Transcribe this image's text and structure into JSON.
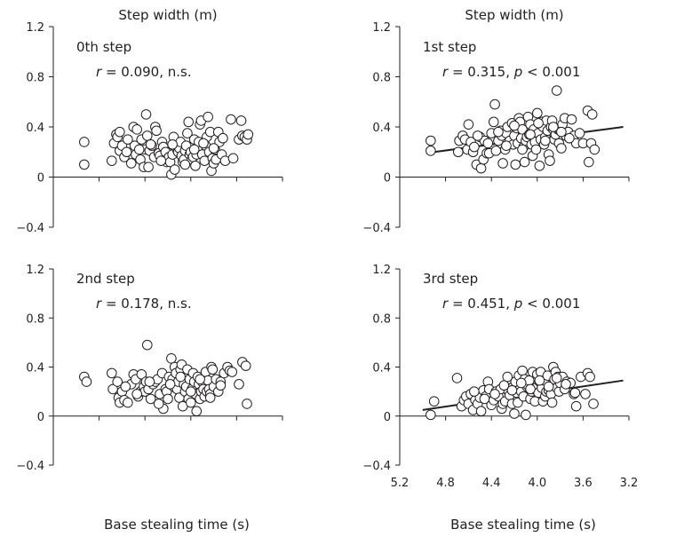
{
  "colors": {
    "ink": "#231f20",
    "point_fill": "#ffffff",
    "background": "#ffffff"
  },
  "chart_data": [
    {
      "type": "scatter",
      "panel": "0th step",
      "title": "Step width (m)",
      "xlabel": "",
      "ylabel": "",
      "stat_r": "0.090",
      "stat_sig": "n.s.",
      "xlim": [
        5.2,
        3.2
      ],
      "ylim": [
        -0.4,
        1.2
      ],
      "x_ticks": [],
      "y_ticks": [
        "1.2",
        "0.8",
        "0.4",
        "0",
        "-0.4"
      ],
      "x": [
        4.93,
        4.93,
        4.69,
        4.67,
        4.65,
        4.64,
        4.62,
        4.6,
        4.58,
        4.56,
        4.52,
        4.5,
        4.49,
        4.48,
        4.47,
        4.44,
        4.43,
        4.41,
        4.4,
        4.39,
        4.38,
        4.37,
        4.36,
        4.34,
        4.32,
        4.31,
        4.3,
        4.28,
        4.27,
        4.25,
        4.24,
        4.22,
        4.21,
        4.2,
        4.19,
        4.18,
        4.17,
        4.16,
        4.15,
        4.14,
        4.13,
        4.12,
        4.11,
        4.1,
        4.09,
        4.08,
        4.07,
        4.06,
        4.05,
        4.04,
        4.03,
        4.02,
        4.01,
        4.0,
        3.99,
        3.98,
        3.97,
        3.96,
        3.95,
        3.94,
        3.93,
        3.92,
        3.91,
        3.9,
        3.88,
        3.87,
        3.86,
        3.85,
        3.84,
        3.83,
        3.82,
        3.81,
        3.8,
        3.79,
        3.78,
        3.76,
        3.75,
        3.73,
        3.7,
        3.65,
        3.63,
        3.58,
        3.56,
        3.55,
        3.53,
        3.51,
        3.5,
        4.62,
        4.55,
        4.45,
        4.35,
        4.26,
        4.16,
        4.05,
        3.97,
        3.89,
        3.8,
        3.72
      ],
      "y": [
        0.1,
        0.28,
        0.13,
        0.27,
        0.34,
        0.32,
        0.21,
        0.25,
        0.16,
        0.2,
        0.11,
        0.4,
        0.25,
        0.18,
        0.38,
        0.14,
        0.3,
        0.08,
        0.22,
        0.5,
        0.33,
        0.08,
        0.21,
        0.25,
        0.16,
        0.4,
        0.37,
        0.19,
        0.17,
        0.28,
        0.24,
        0.2,
        0.12,
        0.14,
        0.16,
        0.12,
        0.02,
        0.18,
        0.32,
        0.06,
        0.24,
        0.22,
        0.2,
        0.23,
        0.28,
        0.17,
        0.12,
        0.14,
        0.21,
        0.25,
        0.35,
        0.44,
        0.18,
        0.2,
        0.14,
        0.16,
        0.3,
        0.09,
        0.18,
        0.23,
        0.28,
        0.42,
        0.45,
        0.18,
        0.13,
        0.25,
        0.32,
        0.48,
        0.2,
        0.36,
        0.05,
        0.15,
        0.11,
        0.22,
        0.14,
        0.36,
        0.28,
        0.18,
        0.13,
        0.46,
        0.15,
        0.3,
        0.45,
        0.33,
        0.32,
        0.3,
        0.34,
        0.36,
        0.3,
        0.22,
        0.26,
        0.13,
        0.26,
        0.1,
        0.22,
        0.27,
        0.23,
        0.31
      ],
      "fit_line": null
    },
    {
      "type": "scatter",
      "panel": "1st step",
      "title": "Step width (m)",
      "xlabel": "",
      "ylabel": "",
      "stat_r": "0.315",
      "stat_sig": "< 0.001",
      "xlim": [
        5.2,
        3.2
      ],
      "ylim": [
        -0.4,
        1.2
      ],
      "x_ticks": [],
      "y_ticks": [
        "1.2",
        "0.8",
        "0.4",
        "0",
        "-0.4"
      ],
      "x": [
        4.93,
        4.93,
        4.69,
        4.68,
        4.65,
        4.63,
        4.61,
        4.58,
        4.56,
        4.55,
        4.53,
        4.5,
        4.49,
        4.47,
        4.46,
        4.44,
        4.42,
        4.4,
        4.38,
        4.37,
        4.36,
        4.34,
        4.32,
        4.31,
        4.3,
        4.28,
        4.27,
        4.26,
        4.24,
        4.22,
        4.21,
        4.2,
        4.19,
        4.18,
        4.17,
        4.16,
        4.15,
        4.14,
        4.13,
        4.12,
        4.11,
        4.1,
        4.09,
        4.08,
        4.07,
        4.06,
        4.05,
        4.04,
        4.03,
        4.02,
        4.01,
        4.0,
        3.99,
        3.98,
        3.97,
        3.96,
        3.95,
        3.94,
        3.93,
        3.92,
        3.91,
        3.9,
        3.89,
        3.88,
        3.87,
        3.86,
        3.85,
        3.84,
        3.83,
        3.82,
        3.81,
        3.8,
        3.79,
        3.78,
        3.76,
        3.75,
        3.73,
        3.7,
        3.68,
        3.66,
        3.63,
        3.6,
        3.56,
        3.55,
        3.53,
        3.52,
        3.5,
        4.6,
        4.52,
        4.43,
        4.34,
        4.27,
        4.2,
        4.13,
        4.06,
        3.99,
        3.93,
        3.86,
        3.79,
        3.72
      ],
      "y": [
        0.21,
        0.29,
        0.2,
        0.29,
        0.33,
        0.3,
        0.22,
        0.28,
        0.2,
        0.24,
        0.1,
        0.32,
        0.07,
        0.14,
        0.29,
        0.19,
        0.19,
        0.35,
        0.44,
        0.58,
        0.21,
        0.29,
        0.37,
        0.33,
        0.11,
        0.22,
        0.35,
        0.4,
        0.29,
        0.43,
        0.26,
        0.33,
        0.1,
        0.39,
        0.27,
        0.47,
        0.44,
        0.31,
        0.38,
        0.24,
        0.12,
        0.29,
        0.32,
        0.48,
        0.34,
        0.42,
        0.26,
        0.17,
        0.38,
        0.28,
        0.22,
        0.51,
        0.35,
        0.09,
        0.3,
        0.44,
        0.4,
        0.26,
        0.32,
        0.45,
        0.37,
        0.18,
        0.13,
        0.4,
        0.45,
        0.38,
        0.3,
        0.34,
        0.69,
        0.38,
        0.27,
        0.37,
        0.23,
        0.42,
        0.47,
        0.33,
        0.36,
        0.46,
        0.33,
        0.27,
        0.35,
        0.27,
        0.53,
        0.12,
        0.27,
        0.5,
        0.22,
        0.42,
        0.33,
        0.27,
        0.36,
        0.25,
        0.41,
        0.22,
        0.34,
        0.43,
        0.29,
        0.4,
        0.36,
        0.31
      ],
      "fit_line": [
        [
          4.9,
          0.2
        ],
        [
          3.25,
          0.4
        ]
      ]
    },
    {
      "type": "scatter",
      "panel": "2nd step",
      "title": "",
      "xlabel": "",
      "ylabel": "",
      "stat_r": "0.178",
      "stat_sig": "n.s.",
      "xlim": [
        5.2,
        3.2
      ],
      "ylim": [
        -0.4,
        1.2
      ],
      "x_ticks": [],
      "y_ticks": [
        "1.2",
        "0.8",
        "0.4",
        "0",
        "-0.4"
      ],
      "x": [
        4.93,
        4.91,
        4.69,
        4.68,
        4.64,
        4.63,
        4.62,
        4.6,
        4.58,
        4.55,
        4.52,
        4.5,
        4.48,
        4.46,
        4.44,
        4.43,
        4.41,
        4.4,
        4.39,
        4.38,
        4.37,
        4.35,
        4.33,
        4.31,
        4.29,
        4.27,
        4.25,
        4.24,
        4.22,
        4.21,
        4.2,
        4.19,
        4.18,
        4.17,
        4.16,
        4.15,
        4.14,
        4.13,
        4.12,
        4.11,
        4.1,
        4.09,
        4.08,
        4.07,
        4.06,
        4.05,
        4.04,
        4.03,
        4.02,
        4.01,
        4.0,
        3.99,
        3.98,
        3.97,
        3.96,
        3.95,
        3.94,
        3.93,
        3.92,
        3.91,
        3.9,
        3.89,
        3.88,
        3.87,
        3.86,
        3.85,
        3.84,
        3.83,
        3.82,
        3.81,
        3.8,
        3.78,
        3.76,
        3.74,
        3.71,
        3.68,
        3.66,
        3.64,
        3.58,
        3.55,
        3.52,
        3.51,
        4.57,
        4.47,
        4.36,
        4.28,
        4.18,
        4.09,
        4.0,
        3.92,
        3.83,
        3.74
      ],
      "y": [
        0.32,
        0.28,
        0.35,
        0.22,
        0.28,
        0.15,
        0.11,
        0.2,
        0.13,
        0.11,
        0.26,
        0.34,
        0.3,
        0.16,
        0.2,
        0.34,
        0.24,
        0.2,
        0.28,
        0.58,
        0.22,
        0.14,
        0.26,
        0.28,
        0.3,
        0.18,
        0.35,
        0.06,
        0.22,
        0.2,
        0.14,
        0.32,
        0.26,
        0.47,
        0.3,
        0.24,
        0.4,
        0.35,
        0.22,
        0.28,
        0.15,
        0.38,
        0.42,
        0.08,
        0.26,
        0.2,
        0.24,
        0.38,
        0.14,
        0.3,
        0.11,
        0.22,
        0.35,
        0.28,
        0.18,
        0.04,
        0.32,
        0.26,
        0.14,
        0.2,
        0.28,
        0.22,
        0.16,
        0.36,
        0.2,
        0.29,
        0.22,
        0.18,
        0.4,
        0.38,
        0.24,
        0.3,
        0.2,
        0.28,
        0.35,
        0.4,
        0.37,
        0.36,
        0.26,
        0.44,
        0.41,
        0.1,
        0.24,
        0.18,
        0.28,
        0.1,
        0.26,
        0.32,
        0.2,
        0.3,
        0.15,
        0.25
      ],
      "fit_line": null
    },
    {
      "type": "scatter",
      "panel": "3rd step",
      "title": "",
      "xlabel": "Base stealing time (s)",
      "ylabel": "",
      "stat_r": "0.451",
      "stat_sig": "< 0.001",
      "xlim": [
        5.2,
        3.2
      ],
      "ylim": [
        -0.4,
        1.2
      ],
      "x_ticks": [
        "5.2",
        "4.8",
        "4.4",
        "4.0",
        "3.6",
        "3.2"
      ],
      "y_ticks": [
        "1.2",
        "0.8",
        "0.4",
        "0",
        "-0.4"
      ],
      "x": [
        4.93,
        4.9,
        4.7,
        4.66,
        4.64,
        4.62,
        4.6,
        4.58,
        4.56,
        4.54,
        4.52,
        4.5,
        4.49,
        4.47,
        4.45,
        4.43,
        4.42,
        4.4,
        4.38,
        4.36,
        4.34,
        4.32,
        4.31,
        4.3,
        4.28,
        4.26,
        4.25,
        4.24,
        4.22,
        4.21,
        4.2,
        4.19,
        4.18,
        4.17,
        4.16,
        4.15,
        4.14,
        4.13,
        4.12,
        4.11,
        4.1,
        4.09,
        4.08,
        4.07,
        4.06,
        4.05,
        4.04,
        4.03,
        4.02,
        4.01,
        4.0,
        3.99,
        3.98,
        3.97,
        3.96,
        3.95,
        3.94,
        3.93,
        3.92,
        3.91,
        3.9,
        3.89,
        3.88,
        3.87,
        3.86,
        3.85,
        3.84,
        3.83,
        3.82,
        3.81,
        3.8,
        3.78,
        3.76,
        3.74,
        3.71,
        3.68,
        3.66,
        3.62,
        3.58,
        3.56,
        3.54,
        3.51,
        4.55,
        4.46,
        4.37,
        4.29,
        4.22,
        4.14,
        4.06,
        3.98,
        3.9,
        3.83,
        3.75,
        3.67
      ],
      "y": [
        0.01,
        0.12,
        0.31,
        0.08,
        0.13,
        0.16,
        0.1,
        0.18,
        0.05,
        0.13,
        0.1,
        0.15,
        0.04,
        0.21,
        0.16,
        0.28,
        0.22,
        0.09,
        0.13,
        0.2,
        0.16,
        0.22,
        0.06,
        0.1,
        0.12,
        0.32,
        0.2,
        0.17,
        0.1,
        0.24,
        0.02,
        0.28,
        0.19,
        0.11,
        0.33,
        0.22,
        0.2,
        0.37,
        0.16,
        0.3,
        0.01,
        0.24,
        0.25,
        0.29,
        0.14,
        0.2,
        0.36,
        0.22,
        0.12,
        0.23,
        0.34,
        0.19,
        0.28,
        0.36,
        0.23,
        0.12,
        0.29,
        0.16,
        0.2,
        0.33,
        0.21,
        0.24,
        0.18,
        0.11,
        0.4,
        0.3,
        0.36,
        0.23,
        0.32,
        0.2,
        0.27,
        0.32,
        0.22,
        0.28,
        0.27,
        0.18,
        0.08,
        0.32,
        0.18,
        0.35,
        0.32,
        0.1,
        0.2,
        0.14,
        0.18,
        0.25,
        0.21,
        0.27,
        0.22,
        0.29,
        0.24,
        0.31,
        0.26,
        0.19
      ],
      "fit_line": [
        [
          5.0,
          0.05
        ],
        [
          3.25,
          0.29
        ]
      ]
    }
  ],
  "x_axis_title_left": "Base stealing time (s)"
}
